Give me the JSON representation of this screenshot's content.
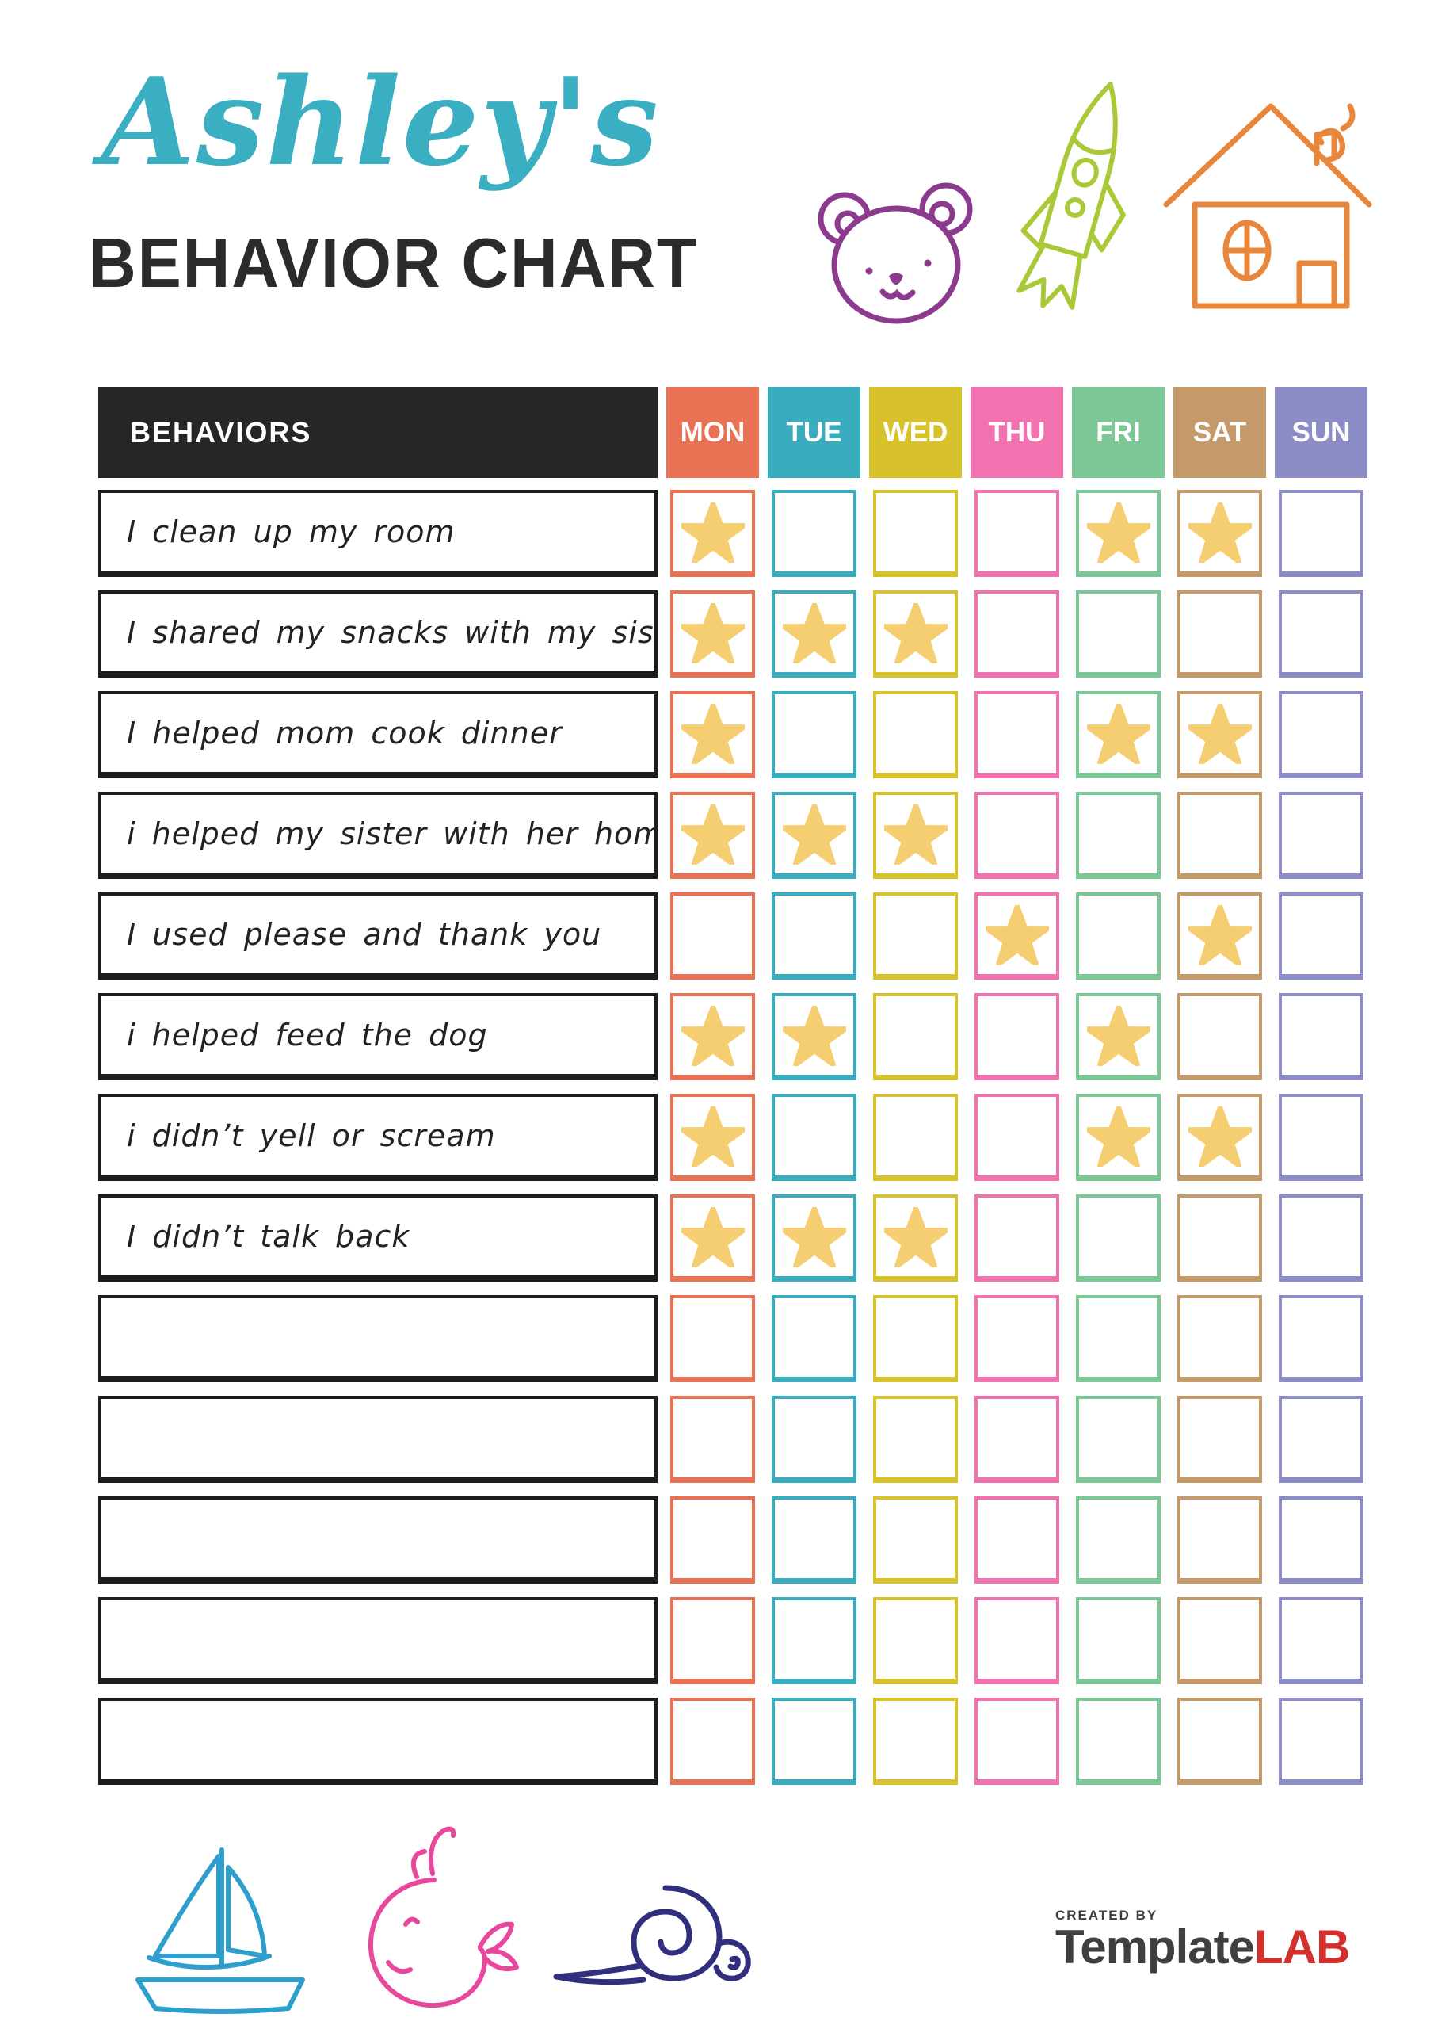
{
  "title": {
    "script": "Ashley's",
    "heading": "BEHAVIOR CHART"
  },
  "colors": {
    "title_script": "#39AFC1",
    "heading_text": "#2B2B2B",
    "behaviors_header_bg": "#262626",
    "behavior_box_border": "#1D1D1D",
    "star": "#F6CE72",
    "doodle_bear": "#8B3A8E",
    "doodle_rocket": "#A9C938",
    "doodle_house": "#E8863C",
    "doodle_sailboat": "#2E9FCC",
    "doodle_whale": "#E8489B",
    "doodle_snail": "#312E7D",
    "brand_gray": "#3F3F3F",
    "brand_red": "#D2302C"
  },
  "table": {
    "behaviors_header": "BEHAVIORS",
    "days": [
      {
        "label": "MON",
        "color": "#EA7254"
      },
      {
        "label": "TUE",
        "color": "#39ACBE"
      },
      {
        "label": "WED",
        "color": "#D8C22C"
      },
      {
        "label": "THU",
        "color": "#F272B0"
      },
      {
        "label": "FRI",
        "color": "#7CC796"
      },
      {
        "label": "SAT",
        "color": "#C49A6B"
      },
      {
        "label": "SUN",
        "color": "#8C8DC6"
      }
    ],
    "rows": [
      {
        "behavior": "I clean up my room",
        "stars": [
          "MON",
          "FRI",
          "SAT"
        ]
      },
      {
        "behavior": "I shared my snacks with my sister",
        "stars": [
          "MON",
          "TUE",
          "WED"
        ]
      },
      {
        "behavior": "I helped mom cook dinner",
        "stars": [
          "MON",
          "FRI",
          "SAT"
        ]
      },
      {
        "behavior": "i helped my sister with her homework",
        "stars": [
          "MON",
          "TUE",
          "WED"
        ]
      },
      {
        "behavior": "I used please and thank you",
        "stars": [
          "THU",
          "SAT"
        ]
      },
      {
        "behavior": "i helped feed the dog",
        "stars": [
          "MON",
          "TUE",
          "FRI"
        ]
      },
      {
        "behavior": "i didn’t yell or scream",
        "stars": [
          "MON",
          "FRI",
          "SAT"
        ]
      },
      {
        "behavior": "I didn’t talk back",
        "stars": [
          "MON",
          "TUE",
          "WED"
        ]
      },
      {
        "behavior": "",
        "stars": []
      },
      {
        "behavior": "",
        "stars": []
      },
      {
        "behavior": "",
        "stars": []
      },
      {
        "behavior": "",
        "stars": []
      },
      {
        "behavior": "",
        "stars": []
      }
    ]
  },
  "icons": {
    "top": [
      "bear-icon",
      "rocket-icon",
      "house-icon"
    ],
    "bottom": [
      "sailboat-icon",
      "whale-icon",
      "snail-icon"
    ],
    "star": "star-icon"
  },
  "footer": {
    "created_by": "CREATED BY",
    "brand_template": "Template",
    "brand_lab": "LAB"
  }
}
